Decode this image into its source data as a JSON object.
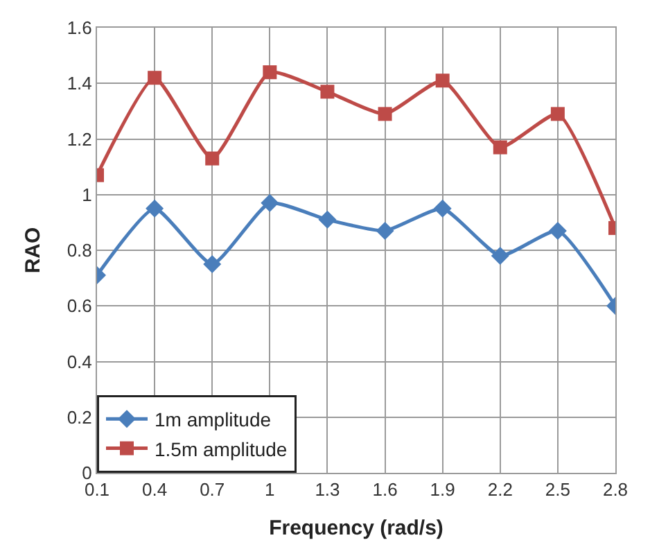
{
  "chart_data": {
    "type": "line",
    "xlabel": "Frequency (rad/s)",
    "ylabel": "RAO",
    "x": [
      0.1,
      0.4,
      0.7,
      1,
      1.3,
      1.6,
      1.9,
      2.2,
      2.5,
      2.8
    ],
    "series": [
      {
        "name": "1m amplitude",
        "color": "#4a7ebb",
        "marker": "diamond",
        "values": [
          0.71,
          0.95,
          0.75,
          0.97,
          0.91,
          0.87,
          0.95,
          0.78,
          0.87,
          0.6
        ]
      },
      {
        "name": "1.5m amplitude",
        "color": "#be4b48",
        "marker": "square",
        "values": [
          1.07,
          1.42,
          1.13,
          1.44,
          1.37,
          1.29,
          1.41,
          1.17,
          1.29,
          0.88
        ]
      }
    ],
    "xlim": [
      0.1,
      2.8
    ],
    "xticks": [
      0.1,
      0.4,
      0.7,
      1,
      1.3,
      1.6,
      1.9,
      2.2,
      2.5,
      2.8
    ],
    "ylim": [
      0,
      1.6
    ],
    "yticks": [
      0,
      0.2,
      0.4,
      0.6,
      0.8,
      1,
      1.2,
      1.4,
      1.6
    ],
    "grid": true,
    "legend": "bottom left",
    "line_style": "solid"
  }
}
